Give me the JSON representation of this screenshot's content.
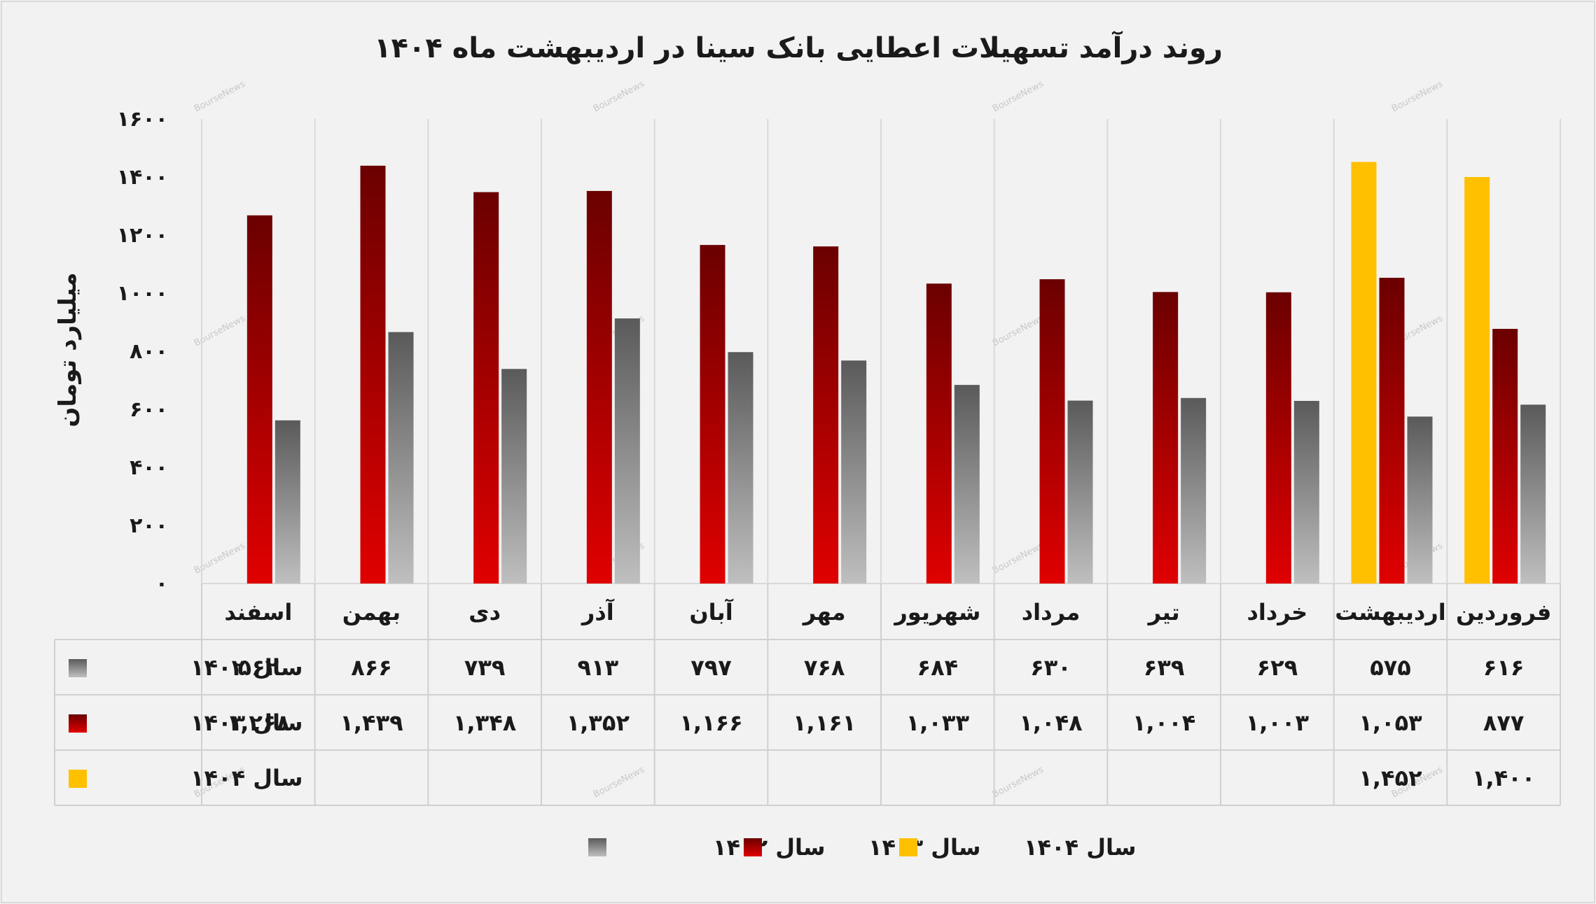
{
  "colors": {
    "s1402_top": "#5a5a5a",
    "s1402_bottom": "#bfbfbf",
    "s1403_top": "#6b0000",
    "s1403_bottom": "#e00000",
    "s1404": "#ffc000"
  },
  "watermark": "BourseNews",
  "chart_data": {
    "type": "bar",
    "title": "روند درآمد تسهیلات اعطایی بانک سینا در اردیبهشت ماه ۱۴۰۴",
    "ylabel": "میلیارد تومان",
    "xlabel": "",
    "ylim": [
      0,
      1600
    ],
    "grid": true,
    "legend": "bottom",
    "categories": [
      "فروردین",
      "اردیبهشت",
      "خرداد",
      "تیر",
      "مرداد",
      "شهریور",
      "مهر",
      "آبان",
      "آذر",
      "دی",
      "بهمن",
      "اسفند"
    ],
    "yticks": [
      {
        "value": 0,
        "label": "۰"
      },
      {
        "value": 200,
        "label": "۲۰۰"
      },
      {
        "value": 400,
        "label": "۴۰۰"
      },
      {
        "value": 600,
        "label": "۶۰۰"
      },
      {
        "value": 800,
        "label": "۸۰۰"
      },
      {
        "value": 1000,
        "label": "۱۰۰۰"
      },
      {
        "value": 1200,
        "label": "۱۲۰۰"
      },
      {
        "value": 1400,
        "label": "۱۴۰۰"
      },
      {
        "value": 1600,
        "label": "۱۶۰۰"
      }
    ],
    "series": [
      {
        "name": "سال ۱۴۰۲",
        "values": [
          616,
          575,
          629,
          639,
          630,
          684,
          768,
          797,
          913,
          739,
          866,
          562
        ],
        "labels": [
          "۶۱۶",
          "۵۷۵",
          "۶۲۹",
          "۶۳۹",
          "۶۳۰",
          "۶۸۴",
          "۷۶۸",
          "۷۹۷",
          "۹۱۳",
          "۷۳۹",
          "۸۶۶",
          "۵۶۲"
        ]
      },
      {
        "name": "سال ۱۴۰۳",
        "values": [
          877,
          1053,
          1003,
          1004,
          1048,
          1033,
          1161,
          1166,
          1352,
          1348,
          1439,
          1268
        ],
        "labels": [
          "۸۷۷",
          "۱,۰۵۳",
          "۱,۰۰۳",
          "۱,۰۰۴",
          "۱,۰۴۸",
          "۱,۰۳۳",
          "۱,۱۶۱",
          "۱,۱۶۶",
          "۱,۳۵۲",
          "۱,۳۴۸",
          "۱,۴۳۹",
          "۱,۲۶۸"
        ]
      },
      {
        "name": "سال ۱۴۰۴",
        "values": [
          1400,
          1452,
          null,
          null,
          null,
          null,
          null,
          null,
          null,
          null,
          null,
          null
        ],
        "labels": [
          "۱,۴۰۰",
          "۱,۴۵۲",
          "",
          "",
          "",
          "",
          "",
          "",
          "",
          "",
          "",
          ""
        ]
      }
    ]
  }
}
